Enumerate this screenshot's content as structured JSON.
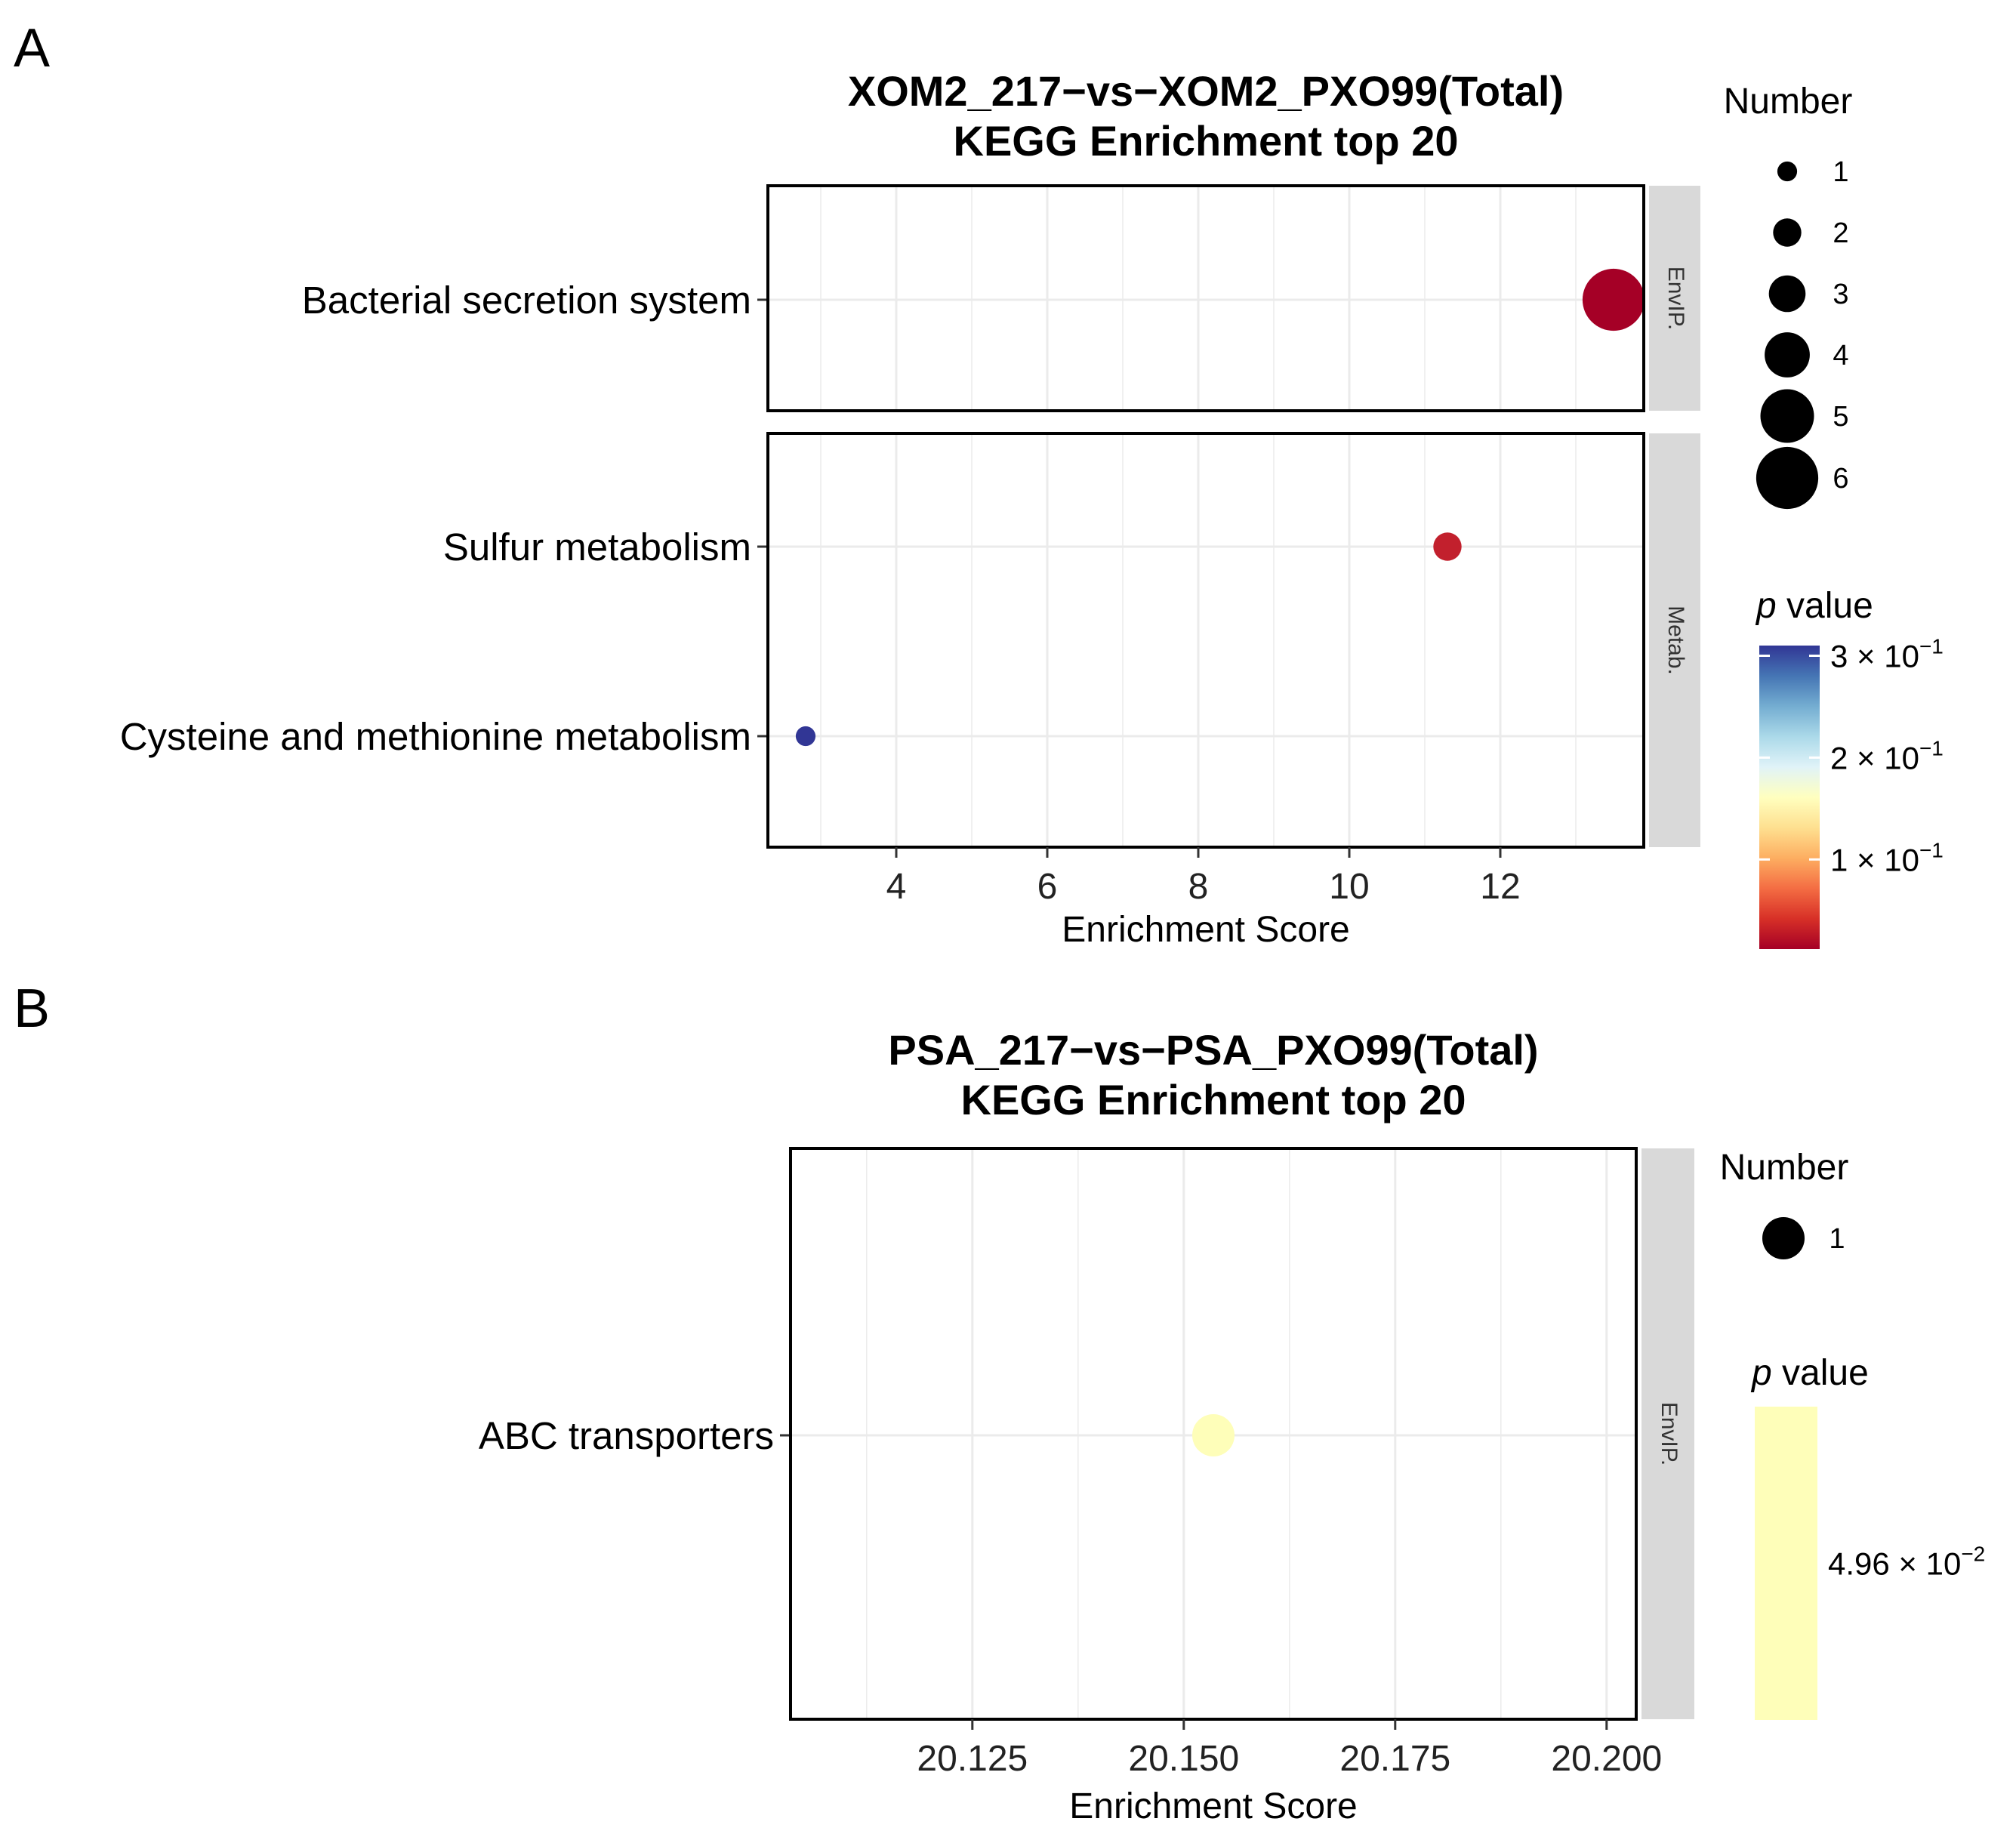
{
  "panel_labels": [
    "A",
    "B"
  ],
  "colors": {
    "pvalue_low": "#a50026",
    "pvalue_mid": "#ffffbf",
    "pvalue_high": "#313695",
    "pvalue_single": "#fefeb9",
    "strip": "#d9d9d9"
  },
  "chart_data": [
    {
      "type": "scatter",
      "panel": "A",
      "title_lines": [
        "XOM2_217−vs−XOM2_PXO99(Total)",
        "KEGG Enrichment top 20"
      ],
      "xlabel": "Enrichment Score",
      "xlim": [
        2.3,
        13.9
      ],
      "xticks": [
        4,
        6,
        8,
        10,
        12
      ],
      "xtick_labels": [
        "4",
        "6",
        "8",
        "10",
        "12"
      ],
      "grid": true,
      "facets": [
        {
          "strip": "EnvIP.",
          "categories": [
            "Bacterial secretion system"
          ],
          "points": [
            {
              "term": "Bacterial secretion system",
              "x": 13.5,
              "number": 6,
              "pvalue": 0.012,
              "color": "#a50026"
            }
          ]
        },
        {
          "strip": "Metab.",
          "categories": [
            "Sulfur metabolism",
            "Cysteine and methionine metabolism"
          ],
          "points": [
            {
              "term": "Sulfur metabolism",
              "x": 11.3,
              "number": 2,
              "pvalue": 0.045,
              "color": "#c2202d"
            },
            {
              "term": "Cysteine and methionine metabolism",
              "x": 2.8,
              "number": 1,
              "pvalue": 0.31,
              "color": "#313695"
            }
          ]
        }
      ],
      "size_legend": {
        "title": "Number",
        "entries": [
          {
            "label": "1",
            "value": 1
          },
          {
            "label": "2",
            "value": 2
          },
          {
            "label": "3",
            "value": 3
          },
          {
            "label": "4",
            "value": 4
          },
          {
            "label": "5",
            "value": 5
          },
          {
            "label": "6",
            "value": 6
          }
        ]
      },
      "color_legend": {
        "title_italic": "p",
        "title_rest": " value",
        "range": [
          0.012,
          0.31
        ],
        "ticks": [
          {
            "value": 0.3,
            "base": "3 × 10",
            "exp": "−1"
          },
          {
            "value": 0.2,
            "base": "2 × 10",
            "exp": "−1"
          },
          {
            "value": 0.1,
            "base": "1 × 10",
            "exp": "−1"
          }
        ]
      }
    },
    {
      "type": "scatter",
      "panel": "B",
      "title_lines": [
        "PSA_217−vs−PSA_PXO99(Total)",
        "KEGG Enrichment top 20"
      ],
      "xlabel": "Enrichment Score",
      "xlim": [
        20.1035,
        20.2035
      ],
      "xticks": [
        20.125,
        20.15,
        20.175,
        20.2
      ],
      "xtick_labels": [
        "20.125",
        "20.150",
        "20.175",
        "20.200"
      ],
      "grid": true,
      "facets": [
        {
          "strip": "EnvIP.",
          "categories": [
            "ABC transporters"
          ],
          "points": [
            {
              "term": "ABC transporters",
              "x": 20.1535,
              "number": 1,
              "pvalue": 0.0496,
              "color": "#fefeb9"
            }
          ]
        }
      ],
      "size_legend": {
        "title": "Number",
        "entries": [
          {
            "label": "1",
            "value": 1
          }
        ]
      },
      "color_legend": {
        "title_italic": "p",
        "title_rest": " value",
        "range": [
          0.0496,
          0.0496
        ],
        "ticks": [
          {
            "value": 0.0496,
            "base": "4.96 × 10",
            "exp": "−2"
          }
        ]
      }
    }
  ]
}
